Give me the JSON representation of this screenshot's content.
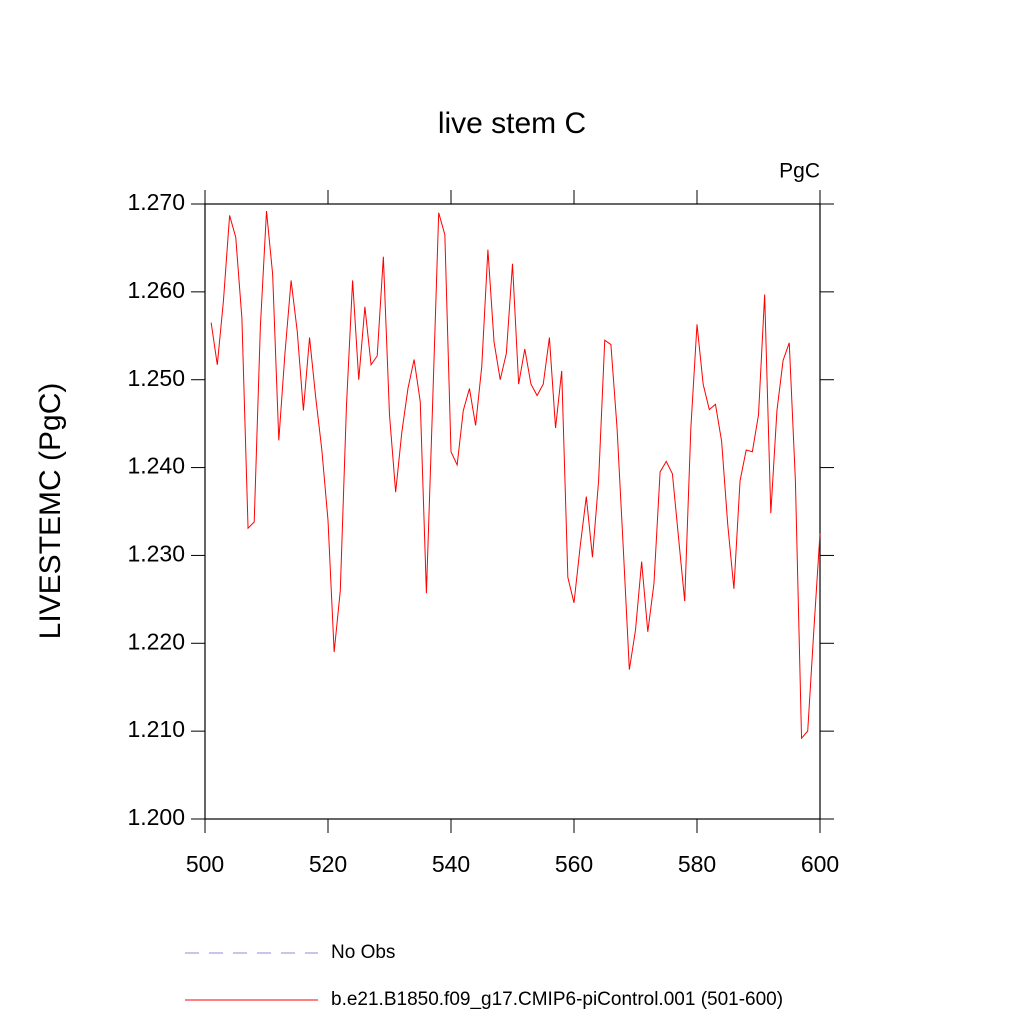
{
  "chart_data": {
    "type": "line",
    "title": "live stem C",
    "units": "PgC",
    "y_label": "LIVESTEMC  (PgC)",
    "x": [
      501,
      502,
      503,
      504,
      505,
      506,
      507,
      508,
      509,
      510,
      511,
      512,
      513,
      514,
      515,
      516,
      517,
      518,
      519,
      520,
      521,
      522,
      523,
      524,
      525,
      526,
      527,
      528,
      529,
      530,
      531,
      532,
      533,
      534,
      535,
      536,
      537,
      538,
      539,
      540,
      541,
      542,
      543,
      544,
      545,
      546,
      547,
      548,
      549,
      550,
      551,
      552,
      553,
      554,
      555,
      556,
      557,
      558,
      559,
      560,
      561,
      562,
      563,
      564,
      565,
      566,
      567,
      568,
      569,
      570,
      571,
      572,
      573,
      574,
      575,
      576,
      577,
      578,
      579,
      580,
      581,
      582,
      583,
      584,
      585,
      586,
      587,
      588,
      589,
      590,
      591,
      592,
      593,
      594,
      595,
      596,
      597,
      598,
      599,
      600
    ],
    "series": [
      {
        "name": "No Obs",
        "color": "#8c8cd9",
        "dashed": true,
        "values": [
          null,
          null,
          null,
          null,
          null,
          null,
          null,
          null,
          null,
          null,
          null,
          null,
          null,
          null,
          null,
          null,
          null,
          null,
          null,
          null,
          null,
          null,
          null,
          null,
          null,
          null,
          null,
          null,
          null,
          null,
          null,
          null,
          null,
          null,
          null,
          null,
          null,
          null,
          null,
          null,
          null,
          null,
          null,
          null,
          null,
          null,
          null,
          null,
          null,
          null,
          null,
          null,
          null,
          null,
          null,
          null,
          null,
          null,
          null,
          null,
          null,
          null,
          null,
          null,
          null,
          null,
          null,
          null,
          null,
          null,
          null,
          null,
          null,
          null,
          null,
          null,
          null,
          null,
          null,
          null,
          null,
          null,
          null,
          null,
          null,
          null,
          null,
          null,
          null,
          null,
          null,
          null,
          null,
          null,
          null,
          null,
          null,
          null,
          null,
          null
        ]
      },
      {
        "name": "b.e21.B1850.f09_g17.CMIP6-piControl.001 (501-600)",
        "color": "#ff0000",
        "dashed": false,
        "values": [
          1.2565,
          1.2517,
          1.259,
          1.2687,
          1.2662,
          1.257,
          1.2331,
          1.2338,
          1.256,
          1.2692,
          1.262,
          1.2431,
          1.253,
          1.2613,
          1.2555,
          1.2465,
          1.2548,
          1.248,
          1.242,
          1.234,
          1.219,
          1.226,
          1.247,
          1.2613,
          1.25,
          1.2583,
          1.2517,
          1.2527,
          1.264,
          1.246,
          1.2372,
          1.244,
          1.249,
          1.2523,
          1.2475,
          1.2257,
          1.247,
          1.269,
          1.2665,
          1.2418,
          1.2403,
          1.2465,
          1.249,
          1.2448,
          1.2515,
          1.2648,
          1.2543,
          1.25,
          1.253,
          1.2632,
          1.2495,
          1.2535,
          1.2495,
          1.2482,
          1.2495,
          1.2548,
          1.2445,
          1.251,
          1.2275,
          1.2246,
          1.231,
          1.2367,
          1.2298,
          1.2385,
          1.2545,
          1.254,
          1.2445,
          1.231,
          1.217,
          1.2215,
          1.2293,
          1.2213,
          1.2268,
          1.2395,
          1.2407,
          1.2393,
          1.232,
          1.2248,
          1.2445,
          1.2563,
          1.2495,
          1.2466,
          1.2472,
          1.243,
          1.2335,
          1.2262,
          1.2385,
          1.242,
          1.2418,
          1.246,
          1.2597,
          1.2348,
          1.2465,
          1.2522,
          1.2542,
          1.2385,
          1.2092,
          1.21,
          1.2215,
          1.2325
        ]
      }
    ],
    "xlim": [
      500,
      600
    ],
    "xticks": [
      500,
      520,
      540,
      560,
      580,
      600
    ],
    "ylim": [
      1.2,
      1.27
    ],
    "yticks": [
      {
        "value": 1.2,
        "label": "1.200"
      },
      {
        "value": 1.21,
        "label": "1.210"
      },
      {
        "value": 1.22,
        "label": "1.220"
      },
      {
        "value": 1.23,
        "label": "1.230"
      },
      {
        "value": 1.24,
        "label": "1.240"
      },
      {
        "value": 1.25,
        "label": "1.250"
      },
      {
        "value": 1.26,
        "label": "1.260"
      },
      {
        "value": 1.27,
        "label": "1.270"
      }
    ]
  }
}
